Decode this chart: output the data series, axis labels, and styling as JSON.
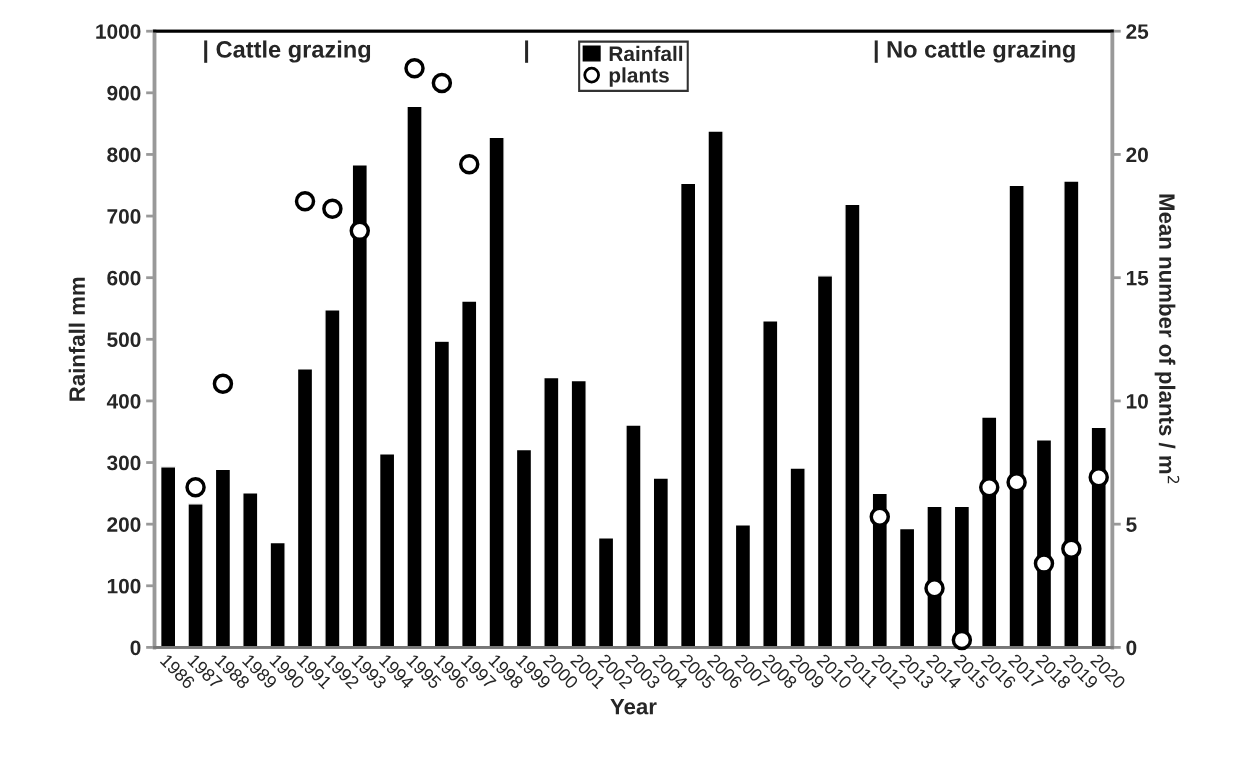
{
  "chart_data": {
    "type": "bar",
    "xlabel": "Year",
    "ylabel": "Rainfall mm",
    "y2label": "Mean number of plants / m$^{2}$",
    "categories": [
      "1986",
      "1987",
      "1988",
      "1989",
      "1990",
      "1991",
      "1992",
      "1993",
      "1994",
      "1995",
      "1996",
      "1997",
      "1998",
      "1999",
      "2000",
      "2001",
      "2002",
      "2003",
      "2004",
      "2005",
      "2006",
      "2007",
      "2008",
      "2009",
      "2010",
      "2011",
      "2012",
      "2013",
      "2014",
      "2015",
      "2016",
      "2017",
      "2018",
      "2019",
      "2020"
    ],
    "series": [
      {
        "name": "Rainfall",
        "color": "#000000",
        "values": [
          293,
          233,
          289,
          251,
          170,
          452,
          548,
          783,
          314,
          878,
          497,
          562,
          828,
          321,
          438,
          433,
          178,
          361,
          275,
          753,
          838,
          199,
          530,
          291,
          603,
          719,
          250,
          193,
          229,
          229,
          374,
          750,
          337,
          757,
          357
        ]
      },
      {
        "name": "plants",
        "type": "scatter",
        "axis": "y2",
        "color": "#ffffff",
        "marker": "circle",
        "values": [
          null,
          6.5,
          10.7,
          null,
          null,
          18.1,
          17.8,
          16.9,
          null,
          23.5,
          22.9,
          19.6,
          null,
          null,
          null,
          null,
          null,
          null,
          null,
          null,
          null,
          null,
          null,
          null,
          null,
          null,
          5.3,
          null,
          2.4,
          0.3,
          6.5,
          6.7,
          3.4,
          4.0,
          6.9
        ]
      }
    ],
    "ylim": [
      0,
      1000
    ],
    "yticks": [
      0,
      100,
      200,
      300,
      400,
      500,
      600,
      700,
      800,
      900,
      1000
    ],
    "y2lim": [
      0,
      25
    ],
    "y2ticks": [
      0,
      5,
      10,
      15,
      20,
      25
    ],
    "annotations": [
      "| Cattle grazing",
      "|",
      "| No cattle grazing"
    ],
    "legend": "top",
    "grid": false
  }
}
